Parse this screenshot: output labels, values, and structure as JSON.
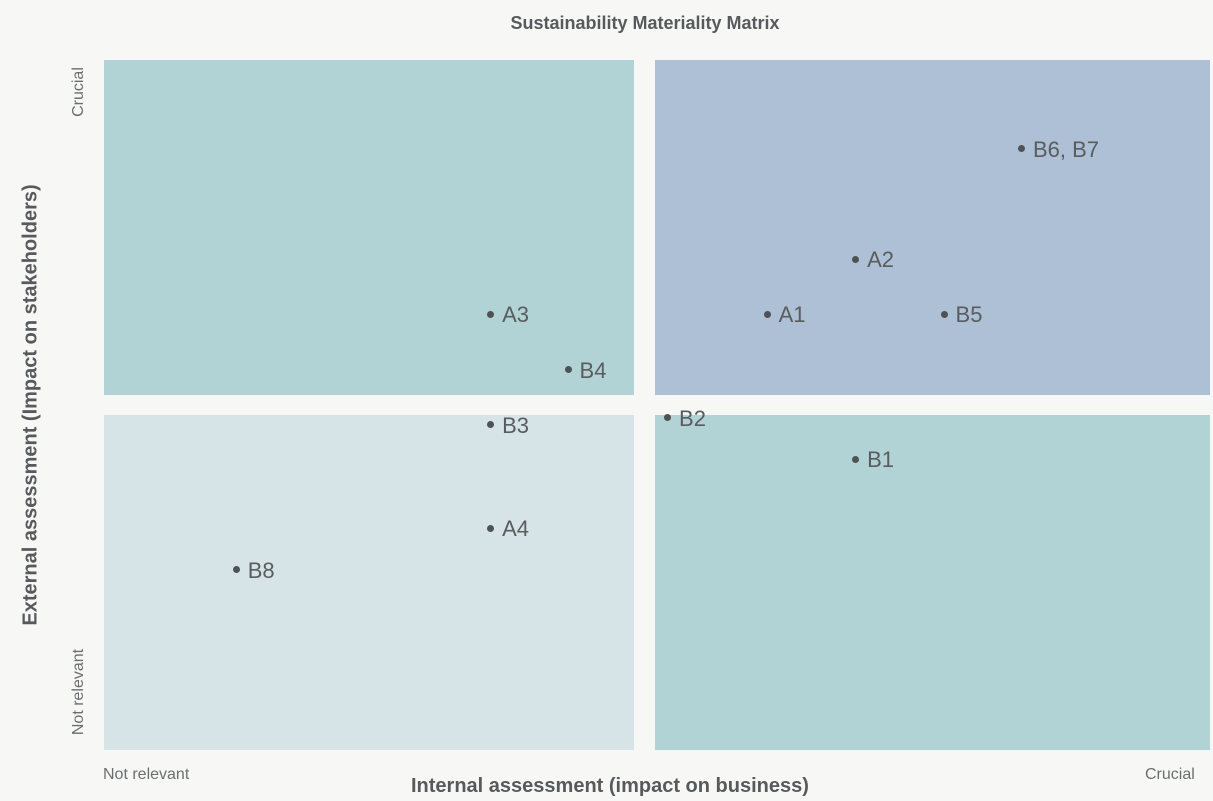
{
  "chart_data": {
    "type": "scatter",
    "title": "Sustainability Materiality Matrix",
    "xlabel": "Internal assessment (impact on business)",
    "ylabel": "External assessment (Impact on stakeholders)",
    "x_axis_ends": {
      "low": "Not relevant",
      "high": "Crucial"
    },
    "y_axis_ends": {
      "low": "Not relevant",
      "high": "Crucial"
    },
    "xlim": [
      0,
      10
    ],
    "ylim": [
      0,
      10
    ],
    "grid": false,
    "quadrant_colors": {
      "top_left": "#b1d3d6",
      "top_right": "#adc0d5",
      "bottom_left": "#d6e4e7",
      "bottom_right": "#b1d3d6"
    },
    "points": [
      {
        "label": "A1",
        "x": 6.0,
        "y": 6.3
      },
      {
        "label": "A2",
        "x": 6.8,
        "y": 7.1
      },
      {
        "label": "A3",
        "x": 3.5,
        "y": 6.3
      },
      {
        "label": "A4",
        "x": 3.5,
        "y": 3.2
      },
      {
        "label": "B1",
        "x": 6.8,
        "y": 4.2
      },
      {
        "label": "B2",
        "x": 5.1,
        "y": 4.8
      },
      {
        "label": "B3",
        "x": 3.5,
        "y": 4.7
      },
      {
        "label": "B4",
        "x": 4.2,
        "y": 5.5
      },
      {
        "label": "B5",
        "x": 7.6,
        "y": 6.3
      },
      {
        "label": "B6, B7",
        "x": 8.3,
        "y": 8.7
      },
      {
        "label": "B8",
        "x": 1.2,
        "y": 2.6
      }
    ]
  }
}
